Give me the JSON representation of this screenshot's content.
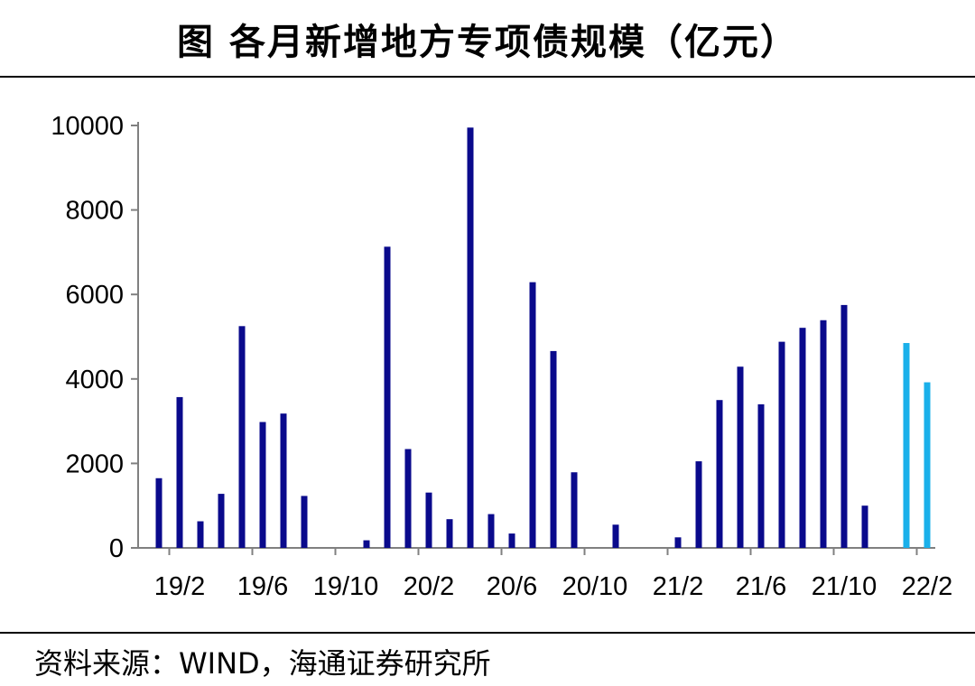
{
  "header": {
    "title": "图  各月新增地方专项债规模（亿元）"
  },
  "footer": {
    "source": "资料来源：WIND，海通证券研究所"
  },
  "colors": {
    "actual": "#0a0a8c",
    "forecast": "#1ab0ea"
  },
  "chart_data": {
    "type": "bar",
    "title": "图  各月新增地方专项债规模（亿元）",
    "xlabel": "",
    "ylabel": "",
    "ylim": [
      0,
      10000
    ],
    "yticks": [
      0,
      2000,
      4000,
      6000,
      8000,
      10000
    ],
    "xtick_labels": [
      "19/2",
      "19/6",
      "19/10",
      "20/2",
      "20/6",
      "20/10",
      "21/2",
      "21/6",
      "21/10",
      "22/2"
    ],
    "categories": [
      "19/1",
      "19/2",
      "19/3",
      "19/4",
      "19/5",
      "19/6",
      "19/7",
      "19/8",
      "19/9",
      "19/10",
      "19/11",
      "19/12",
      "20/1",
      "20/2",
      "20/3",
      "20/4",
      "20/5",
      "20/6",
      "20/7",
      "20/8",
      "20/9",
      "20/10",
      "20/11",
      "20/12",
      "21/1",
      "21/2",
      "21/3",
      "21/4",
      "21/5",
      "21/6",
      "21/7",
      "21/8",
      "21/9",
      "21/10",
      "21/11",
      "21/12",
      "22/1",
      "22/2"
    ],
    "values": [
      1650,
      3570,
      630,
      1280,
      5250,
      2980,
      3180,
      1230,
      0,
      0,
      180,
      7130,
      2340,
      1310,
      680,
      9950,
      800,
      340,
      6290,
      4660,
      1790,
      0,
      550,
      0,
      0,
      250,
      2050,
      3500,
      4290,
      3400,
      4880,
      5210,
      5390,
      5750,
      1000,
      0,
      4850,
      3920
    ],
    "highlight_last": 2,
    "grid": false,
    "legend": "none"
  }
}
